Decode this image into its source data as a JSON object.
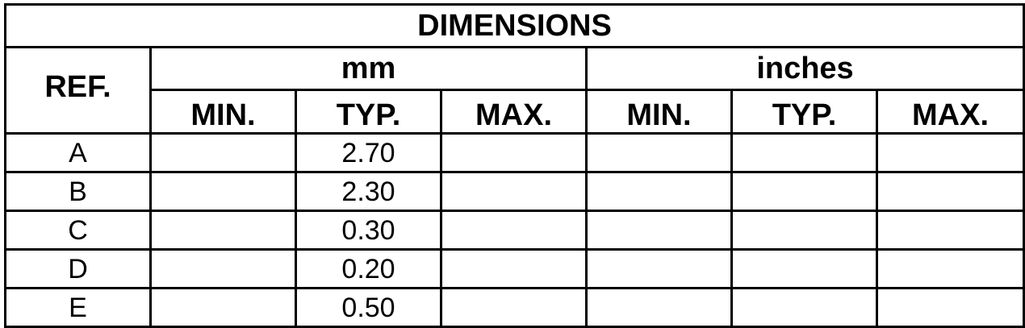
{
  "title": "DIMENSIONS",
  "header": {
    "ref": "REF.",
    "groups": [
      "mm",
      "inches"
    ],
    "sub": [
      "MIN.",
      "TYP.",
      "MAX.",
      "MIN.",
      "TYP.",
      "MAX."
    ]
  },
  "rows": [
    {
      "ref": "A",
      "mm_min": "",
      "mm_typ": "2.70",
      "mm_max": "",
      "in_min": "",
      "in_typ": "",
      "in_max": ""
    },
    {
      "ref": "B",
      "mm_min": "",
      "mm_typ": "2.30",
      "mm_max": "",
      "in_min": "",
      "in_typ": "",
      "in_max": ""
    },
    {
      "ref": "C",
      "mm_min": "",
      "mm_typ": "0.30",
      "mm_max": "",
      "in_min": "",
      "in_typ": "",
      "in_max": ""
    },
    {
      "ref": "D",
      "mm_min": "",
      "mm_typ": "0.20",
      "mm_max": "",
      "in_min": "",
      "in_typ": "",
      "in_max": ""
    },
    {
      "ref": "E",
      "mm_min": "",
      "mm_typ": "0.50",
      "mm_max": "",
      "in_min": "",
      "in_typ": "",
      "in_max": ""
    }
  ]
}
